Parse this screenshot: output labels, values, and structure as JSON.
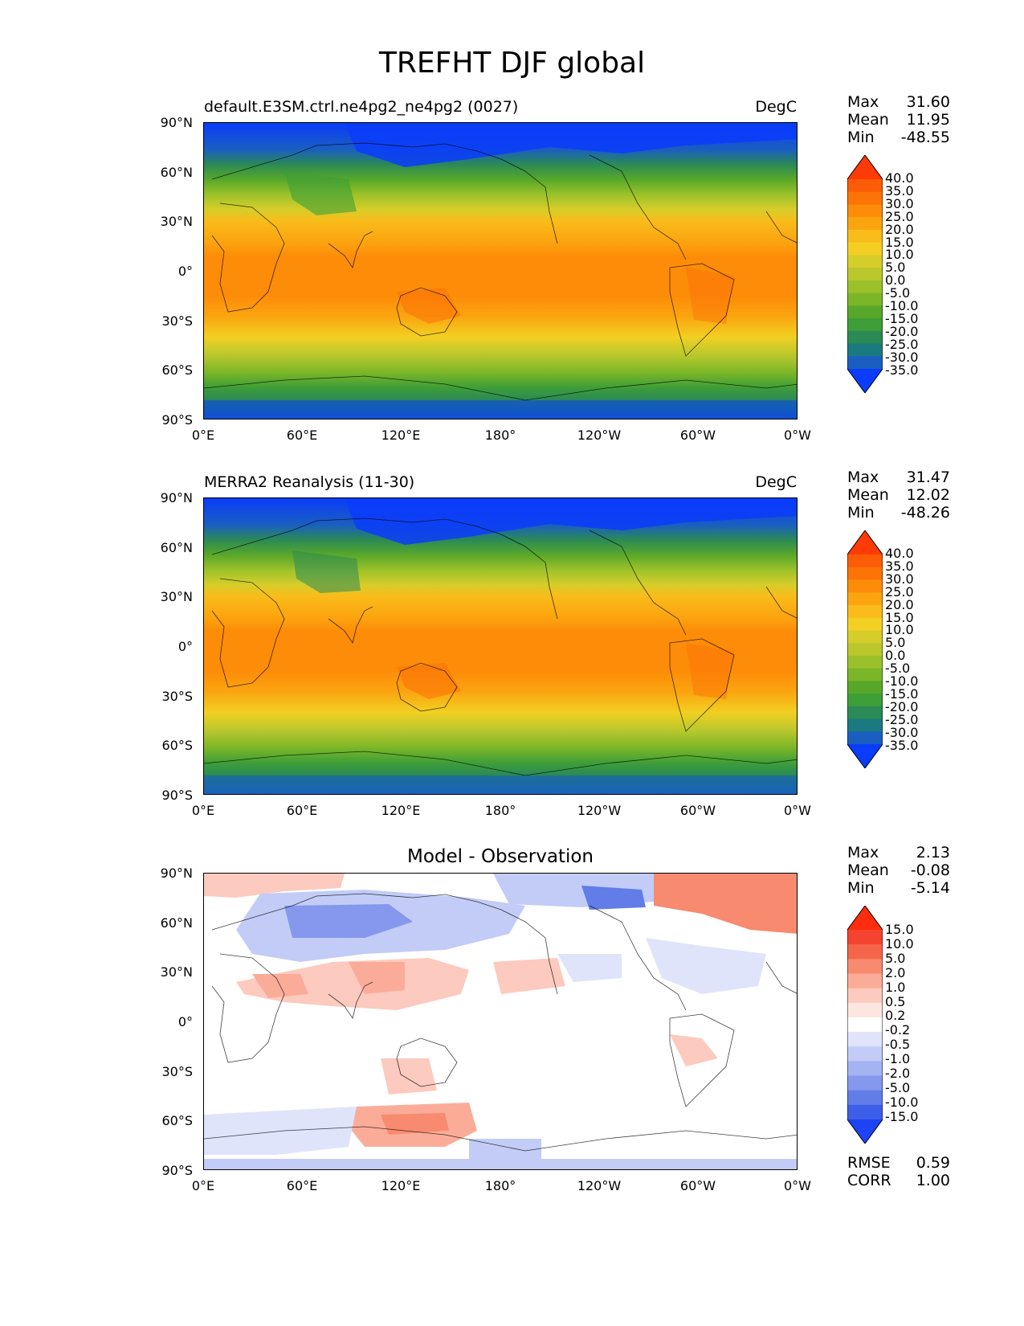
{
  "title": "TREFHT DJF global",
  "x_ticks": [
    "0°E",
    "60°E",
    "120°E",
    "180°",
    "120°W",
    "60°W",
    "0°W"
  ],
  "y_ticks": [
    "90°N",
    "60°N",
    "30°N",
    "0°",
    "30°S",
    "60°S",
    "90°S"
  ],
  "panels": [
    {
      "title_left": "default.E3SM.ctrl.ne4pg2_ne4pg2 (0027)",
      "title_right": "DegC",
      "title_center": "",
      "stats": [
        {
          "label": "Max",
          "value": "31.60"
        },
        {
          "label": "Mean",
          "value": "11.95"
        },
        {
          "label": "Min",
          "value": "-48.55"
        }
      ],
      "colorbar_labels": [
        "40.0",
        "35.0",
        "30.0",
        "25.0",
        "20.0",
        "15.0",
        "10.0",
        "5.0",
        "0.0",
        "-5.0",
        "-10.0",
        "-15.0",
        "-20.0",
        "-25.0",
        "-30.0",
        "-35.0"
      ],
      "colorbar_colors": [
        "#ff3a06",
        "#fd5c06",
        "#fc7406",
        "#fd8c08",
        "#fba40f",
        "#f9bc1a",
        "#f2cf22",
        "#d6cd2a",
        "#bac82c",
        "#9bc12a",
        "#7bb628",
        "#58a72a",
        "#3e9e37",
        "#2b8a55",
        "#1b7a80",
        "#1a5fc0",
        "#0a3cfa"
      ]
    },
    {
      "title_left": "MERRA2 Reanalysis (11-30)",
      "title_right": "DegC",
      "title_center": "",
      "stats": [
        {
          "label": "Max",
          "value": "31.47"
        },
        {
          "label": "Mean",
          "value": "12.02"
        },
        {
          "label": "Min",
          "value": "-48.26"
        }
      ],
      "colorbar_labels": [
        "40.0",
        "35.0",
        "30.0",
        "25.0",
        "20.0",
        "15.0",
        "10.0",
        "5.0",
        "0.0",
        "-5.0",
        "-10.0",
        "-15.0",
        "-20.0",
        "-25.0",
        "-30.0",
        "-35.0"
      ],
      "colorbar_colors": [
        "#ff3a06",
        "#fd5c06",
        "#fc7406",
        "#fd8c08",
        "#fba40f",
        "#f9bc1a",
        "#f2cf22",
        "#d6cd2a",
        "#bac82c",
        "#9bc12a",
        "#7bb628",
        "#58a72a",
        "#3e9e37",
        "#2b8a55",
        "#1b7a80",
        "#1a5fc0",
        "#0a3cfa"
      ]
    },
    {
      "title_left": "",
      "title_right": "",
      "title_center": "Model - Observation",
      "stats": [
        {
          "label": "Max",
          "value": "2.13"
        },
        {
          "label": "Mean",
          "value": "-0.08"
        },
        {
          "label": "Min",
          "value": "-5.14"
        }
      ],
      "colorbar_labels": [
        "15.0",
        "10.0",
        "5.0",
        "2.0",
        "1.0",
        "0.5",
        "0.2",
        "-0.2",
        "-0.5",
        "-1.0",
        "-2.0",
        "-5.0",
        "-10.0",
        "-15.0"
      ],
      "colorbar_colors": [
        "#ff2d0d",
        "#f4442f",
        "#f66549",
        "#f88a70",
        "#fbac98",
        "#fccabe",
        "#fde6e0",
        "#ffffff",
        "#dfe4fb",
        "#c2ccf6",
        "#a4b3f2",
        "#8598ee",
        "#627ce8",
        "#3d5ee8",
        "#1e43f5"
      ],
      "footer_stats": [
        {
          "label": "RMSE",
          "value": "0.59"
        },
        {
          "label": "CORR",
          "value": "1.00"
        }
      ]
    }
  ]
}
